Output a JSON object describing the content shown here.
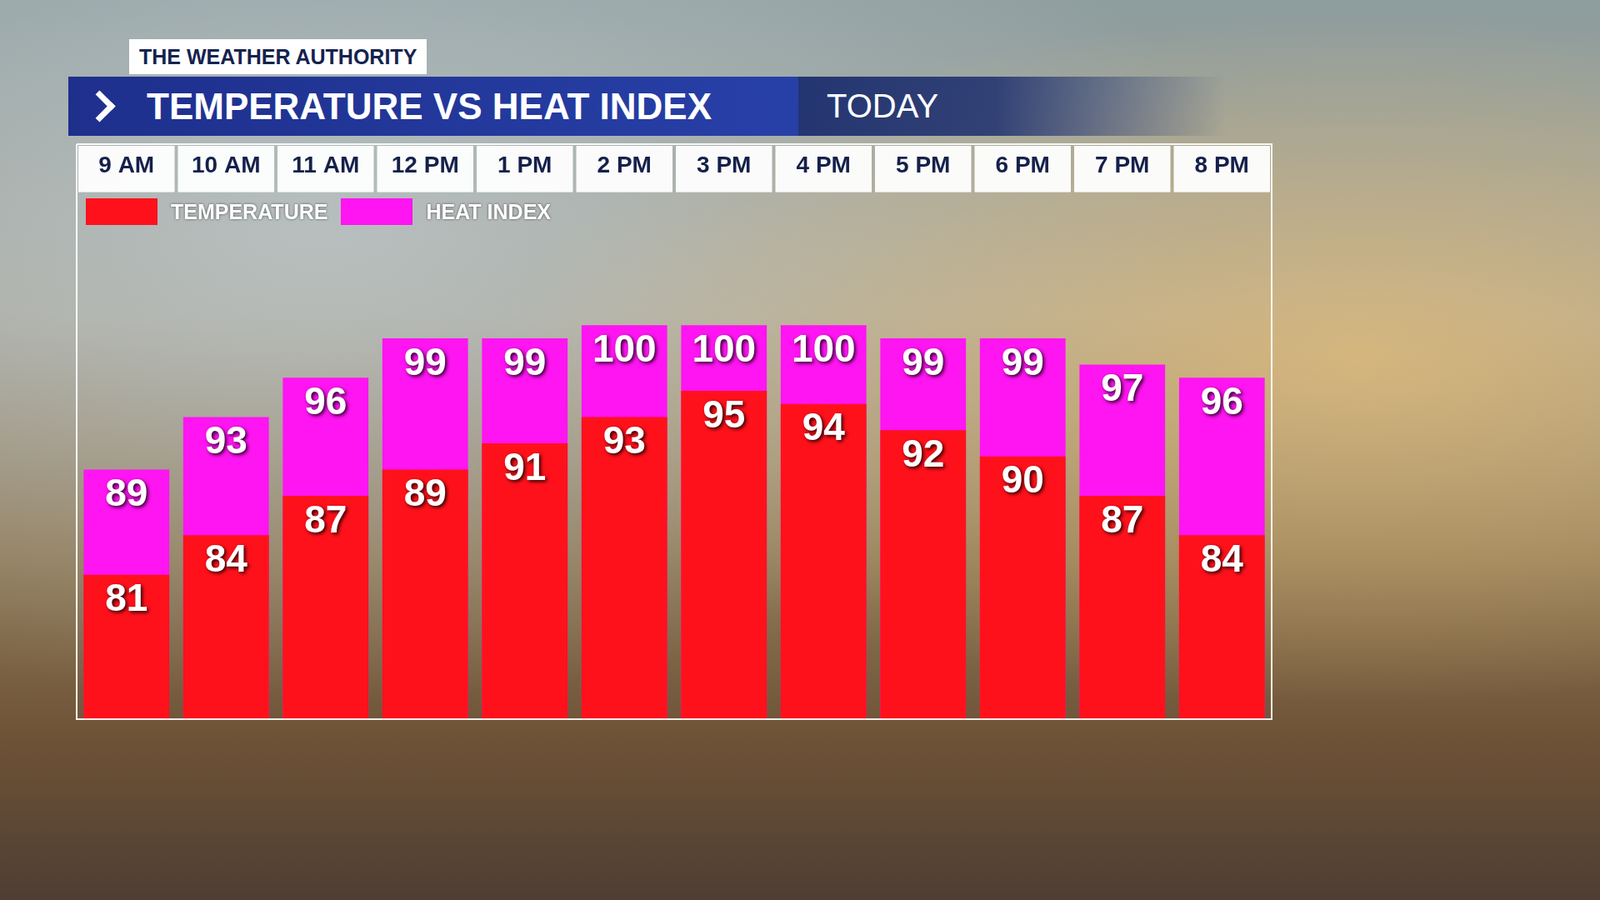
{
  "header": {
    "brand": "THE WEATHER AUTHORITY"
  },
  "chart_data": {
    "type": "bar",
    "title": "TEMPERATURE VS HEAT INDEX",
    "subtitle": "TODAY",
    "categories": [
      "9 AM",
      "10 AM",
      "11 AM",
      "12 PM",
      "1 PM",
      "2 PM",
      "3 PM",
      "4 PM",
      "5 PM",
      "6 PM",
      "7 PM",
      "8 PM"
    ],
    "series": [
      {
        "name": "TEMPERATURE",
        "color": "#ff111b",
        "values": [
          81,
          84,
          87,
          89,
          91,
          93,
          95,
          94,
          92,
          90,
          87,
          84
        ]
      },
      {
        "name": "HEAT INDEX",
        "color": "#ff14f2",
        "values": [
          89,
          93,
          96,
          99,
          99,
          100,
          100,
          100,
          99,
          99,
          97,
          96
        ]
      }
    ],
    "ylim": [
      70,
      110
    ],
    "yticks": [
      70,
      80,
      90,
      100,
      110
    ],
    "grid": false,
    "legend": "upper left",
    "data_labels": true,
    "tick_labels": "x"
  }
}
